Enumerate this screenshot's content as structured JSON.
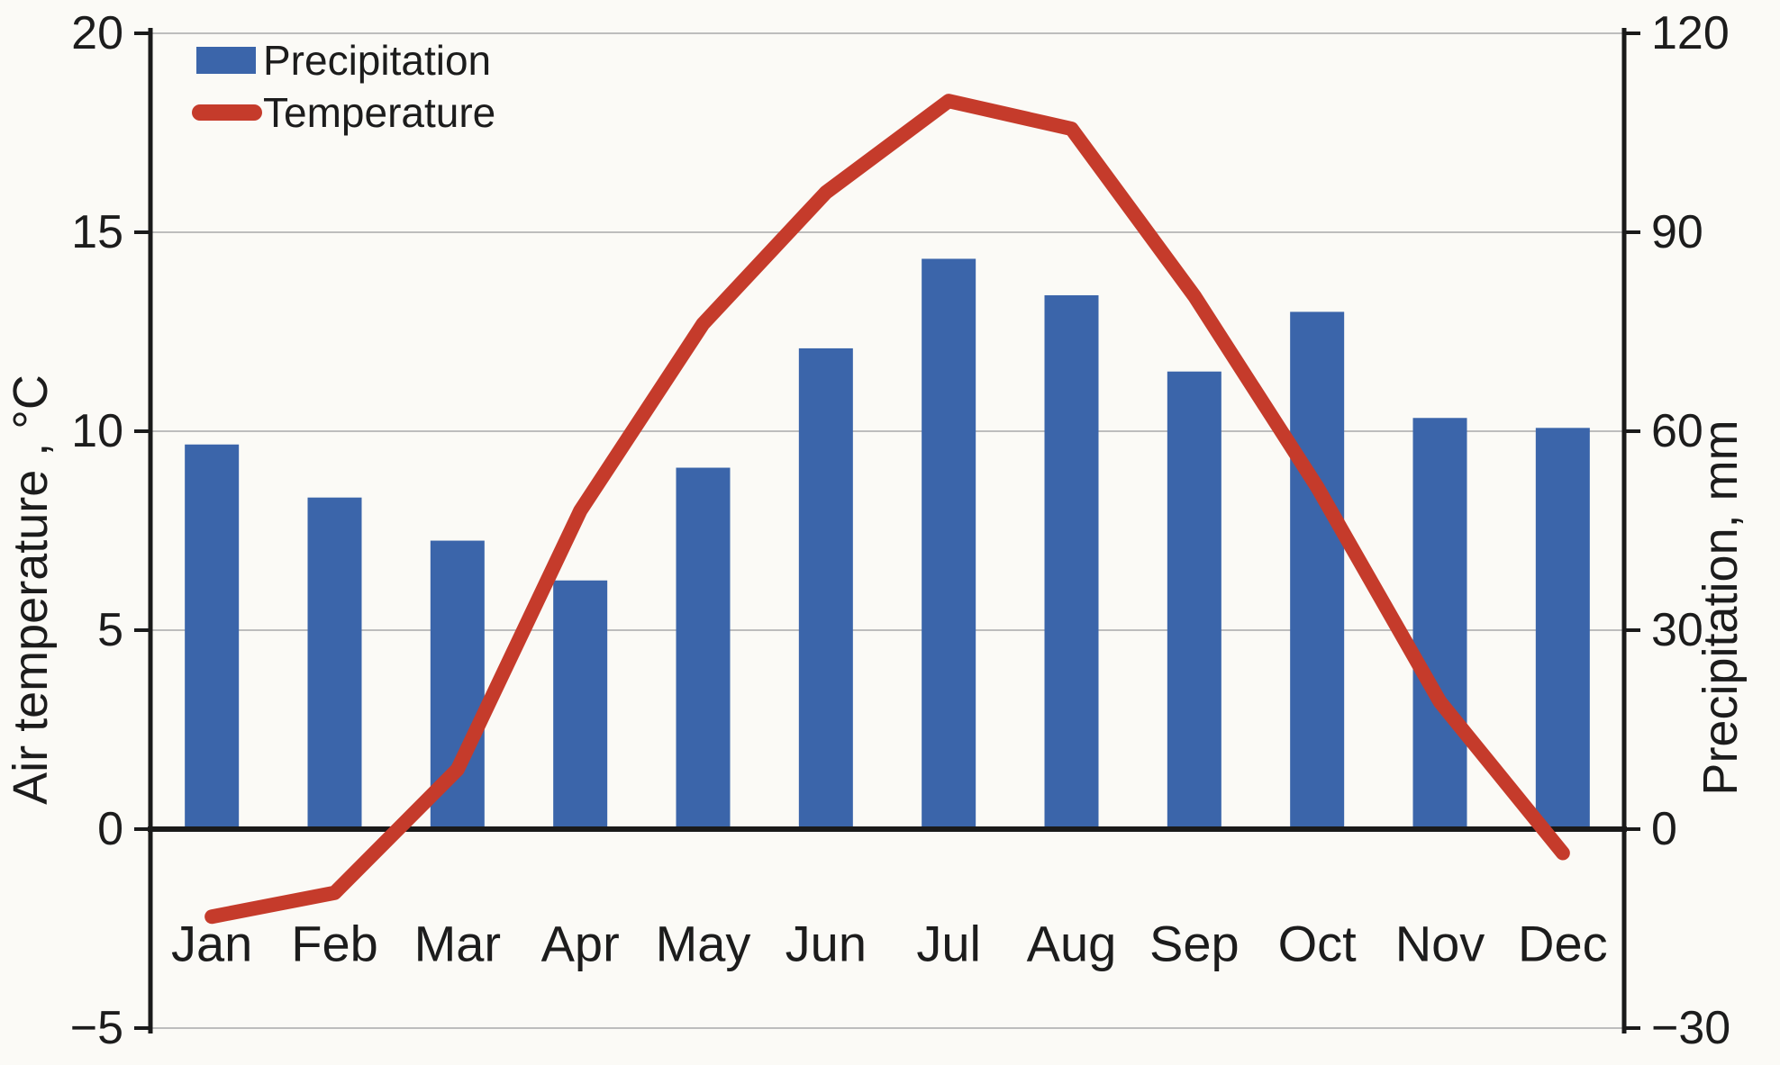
{
  "chart_data": {
    "type": "bar",
    "subtype": "bar-line-combo-climograph",
    "categories": [
      "Jan",
      "Feb",
      "Mar",
      "Apr",
      "May",
      "Jun",
      "Jul",
      "Aug",
      "Sep",
      "Oct",
      "Nov",
      "Dec"
    ],
    "series": [
      {
        "name": "Precipitation",
        "type": "bar",
        "axis": "right",
        "color": "#3b65aa",
        "values": [
          58,
          50,
          43.5,
          37.5,
          54.5,
          72.5,
          86,
          80.5,
          69,
          78,
          62,
          60.5
        ]
      },
      {
        "name": "Temperature",
        "type": "line",
        "axis": "left",
        "color": "#c53b2b",
        "values": [
          -2.2,
          -1.6,
          1.5,
          8.0,
          12.7,
          16.0,
          18.3,
          17.6,
          13.4,
          8.6,
          3.2,
          -0.6
        ]
      }
    ],
    "left_axis": {
      "label": "Air temperature , °C",
      "min": -5,
      "max": 20,
      "tick_values": [
        20,
        15,
        10,
        5,
        0,
        -5
      ],
      "tick_labels": [
        "20",
        "15",
        "10",
        "5",
        "0",
        "−5"
      ]
    },
    "right_axis": {
      "label": "Precipitation, mm",
      "min": -30,
      "max": 120,
      "tick_values": [
        120,
        90,
        60,
        30,
        0,
        -30
      ],
      "tick_labels": [
        "120",
        "90",
        "60",
        "30",
        "0",
        "−30"
      ]
    },
    "legend": {
      "position": "top-left",
      "items": [
        {
          "label": "Precipitation",
          "marker": "rect",
          "color": "#3b65aa"
        },
        {
          "label": "Temperature",
          "marker": "line",
          "color": "#c53b2b"
        }
      ]
    },
    "grid": true,
    "title": "",
    "colors": {
      "grid": "#bdbdbd",
      "axis": "#1a1a1a",
      "background": "#fbfaf6"
    }
  }
}
